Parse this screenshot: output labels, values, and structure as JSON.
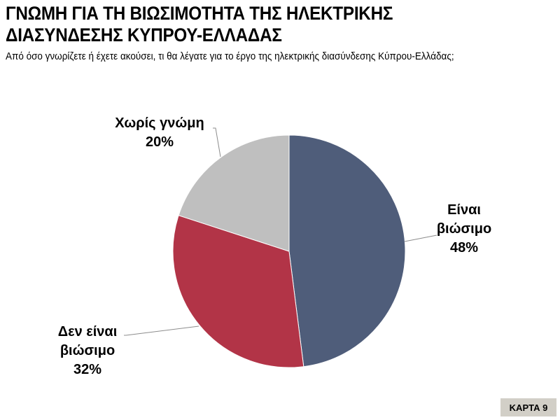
{
  "title": "ΓΝΩΜΗ ΓΙΑ ΤΗ ΒΙΩΣΙΜΟΤΗΤΑ ΤΗΣ ΗΛΕΚΤΡΙΚΗΣ ΔΙΑΣΥΝΔΕΣΗΣ ΚΥΠΡΟΥ-ΕΛΛΑΔΑΣ",
  "title_lines": [
    "ΓΝΩΜΗ ΓΙΑ ΤΗ ΒΙΩΣΙΜΟΤΗΤΑ ΤΗΣ ΗΛΕΚΤΡΙΚΗΣ",
    "ΔΙΑΣΥΝΔΕΣΗΣ ΚΥΠΡΟΥ-ΕΛΛΑΔΑΣ"
  ],
  "subtitle": "Από όσο γνωρίζετε ή έχετε ακούσει, τι θα λέγατε για το έργο της ηλεκτρικής διασύνδεσης Κύπρου-Ελλάδας;",
  "badge": "ΚΑΡΤΑ 9",
  "labels": {
    "yes": {
      "lines": [
        "Είναι",
        "βιώσιμο",
        "48%"
      ]
    },
    "no": {
      "lines": [
        "Δεν είναι",
        "βιώσιμο",
        "32%"
      ]
    },
    "none": {
      "lines": [
        "Χωρίς γνώμη",
        "20%"
      ]
    }
  },
  "chart_data": {
    "type": "pie",
    "title": "ΓΝΩΜΗ ΓΙΑ ΤΗ ΒΙΩΣΙΜΟΤΗΤΑ ΤΗΣ ΗΛΕΚΤΡΙΚΗΣ ΔΙΑΣΥΝΔΕΣΗΣ ΚΥΠΡΟΥ-ΕΛΛΑΔΑΣ",
    "subtitle": "Από όσο γνωρίζετε ή έχετε ακούσει, τι θα λέγατε για το έργο της ηλεκτρικής διασύνδεσης Κύπρου-Ελλάδας;",
    "categories": [
      "Είναι βιώσιμο",
      "Δεν είναι βιώσιμο",
      "Χωρίς γνώμη"
    ],
    "values": [
      48,
      32,
      20
    ],
    "unit": "%",
    "colors": [
      "#4f5d7a",
      "#b23447",
      "#bfbfbf"
    ],
    "start_angle": "12 o'clock, clockwise",
    "legend": "none (data labels with leader lines)"
  }
}
